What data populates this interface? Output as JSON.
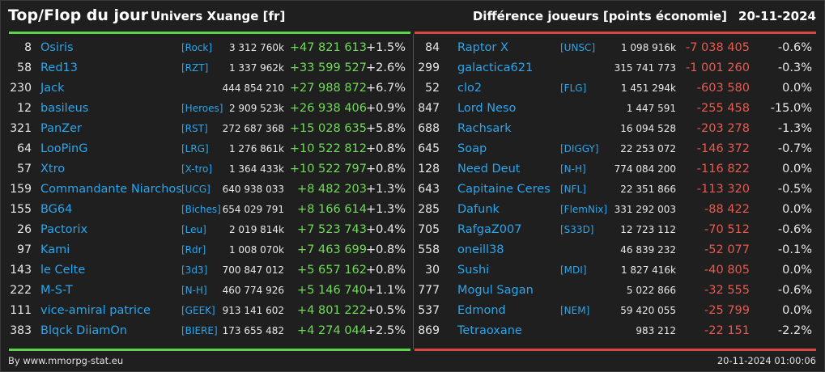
{
  "header": {
    "title": "Top/Flop du jour",
    "universe": "Univers Xuange [fr]",
    "metric": "Différence joueurs [points économie]",
    "date": "20-11-2024"
  },
  "colors": {
    "background": "#1f1f1f",
    "name": "#29a6ee",
    "positive": "#6fdc55",
    "negative": "#e85a4f",
    "top_bar": "#5fd34d",
    "flop_bar": "#d8473f"
  },
  "top": [
    {
      "rank": "8",
      "name": "Osiris",
      "alliance": "[Rock]",
      "points": "3 312 760k",
      "diff": "+47 821 613",
      "pct": "+1.5%"
    },
    {
      "rank": "58",
      "name": "Red13",
      "alliance": "[RZT]",
      "points": "1 337 962k",
      "diff": "+33 599 527",
      "pct": "+2.6%"
    },
    {
      "rank": "230",
      "name": "Jack",
      "alliance": "",
      "points": "444 854 210",
      "diff": "+27 988 872",
      "pct": "+6.7%"
    },
    {
      "rank": "12",
      "name": "basileus",
      "alliance": "[Heroes]",
      "points": "2 909 523k",
      "diff": "+26 938 406",
      "pct": "+0.9%"
    },
    {
      "rank": "321",
      "name": "PanZer",
      "alliance": "[RST]",
      "points": "272 687 368",
      "diff": "+15 028 635",
      "pct": "+5.8%"
    },
    {
      "rank": "64",
      "name": "LooPinG",
      "alliance": "[LRG]",
      "points": "1 276 861k",
      "diff": "+10 522 812",
      "pct": "+0.8%"
    },
    {
      "rank": "57",
      "name": "Xtro",
      "alliance": "[X-tro]",
      "points": "1 364 433k",
      "diff": "+10 522 797",
      "pct": "+0.8%"
    },
    {
      "rank": "159",
      "name": "Commandante Niarchos",
      "alliance": "[UCG]",
      "points": "640 938 033",
      "diff": "+8 482 203",
      "pct": "+1.3%"
    },
    {
      "rank": "155",
      "name": "BG64",
      "alliance": "[Biches]",
      "points": "654 029 791",
      "diff": "+8 166 614",
      "pct": "+1.3%"
    },
    {
      "rank": "26",
      "name": "Pactorix",
      "alliance": "[Leu]",
      "points": "2 019 814k",
      "diff": "+7 523 743",
      "pct": "+0.4%"
    },
    {
      "rank": "97",
      "name": "Kami",
      "alliance": "[Rdr]",
      "points": "1 008 070k",
      "diff": "+7 463 699",
      "pct": "+0.8%"
    },
    {
      "rank": "143",
      "name": "le Celte",
      "alliance": "[3d3]",
      "points": "700 847 012",
      "diff": "+5 657 162",
      "pct": "+0.8%"
    },
    {
      "rank": "222",
      "name": "M-S-T",
      "alliance": "[N-H]",
      "points": "460 774 926",
      "diff": "+5 146 740",
      "pct": "+1.1%"
    },
    {
      "rank": "111",
      "name": "vice-amiral patrice",
      "alliance": "[GEEK]",
      "points": "913 141 602",
      "diff": "+4 801 222",
      "pct": "+0.5%"
    },
    {
      "rank": "383",
      "name": "Blqck DiiamOn",
      "alliance": "[BIERE]",
      "points": "173 655 482",
      "diff": "+4 274 044",
      "pct": "+2.5%"
    }
  ],
  "flop": [
    {
      "rank": "84",
      "name": "Raptor X",
      "alliance": "[UNSC]",
      "points": "1 098 916k",
      "diff": "-7 038 405",
      "pct": "-0.6%"
    },
    {
      "rank": "299",
      "name": "galactica621",
      "alliance": "",
      "points": "315 741 773",
      "diff": "-1 001 260",
      "pct": "-0.3%"
    },
    {
      "rank": "52",
      "name": "clo2",
      "alliance": "[FLG]",
      "points": "1 451 294k",
      "diff": "-603 580",
      "pct": "0.0%"
    },
    {
      "rank": "847",
      "name": "Lord Neso",
      "alliance": "",
      "points": "1 447 591",
      "diff": "-255 458",
      "pct": "-15.0%"
    },
    {
      "rank": "688",
      "name": "Rachsark",
      "alliance": "",
      "points": "16 094 528",
      "diff": "-203 278",
      "pct": "-1.3%"
    },
    {
      "rank": "645",
      "name": "Soap",
      "alliance": "[DIGGY]",
      "points": "22 253 072",
      "diff": "-146 372",
      "pct": "-0.7%"
    },
    {
      "rank": "128",
      "name": "Need Deut",
      "alliance": "[N-H]",
      "points": "774 084 200",
      "diff": "-116 822",
      "pct": "0.0%"
    },
    {
      "rank": "643",
      "name": "Capitaine Ceres",
      "alliance": "[NFL]",
      "points": "22 351 866",
      "diff": "-113 320",
      "pct": "-0.5%"
    },
    {
      "rank": "285",
      "name": "Dafunk",
      "alliance": "[FlemNix]",
      "points": "331 292 003",
      "diff": "-88 422",
      "pct": "0.0%"
    },
    {
      "rank": "705",
      "name": "RafgaZ007",
      "alliance": "[S33D]",
      "points": "12 723 112",
      "diff": "-70 512",
      "pct": "-0.6%"
    },
    {
      "rank": "558",
      "name": "oneill38",
      "alliance": "",
      "points": "46 839 232",
      "diff": "-52 077",
      "pct": "-0.1%"
    },
    {
      "rank": "30",
      "name": "Sushi",
      "alliance": "[MDI]",
      "points": "1 827 416k",
      "diff": "-40 805",
      "pct": "0.0%"
    },
    {
      "rank": "777",
      "name": "Mogul Sagan",
      "alliance": "",
      "points": "5 022 866",
      "diff": "-32 555",
      "pct": "-0.6%"
    },
    {
      "rank": "537",
      "name": "Edmond",
      "alliance": "[NEM]",
      "points": "59 420 055",
      "diff": "-25 799",
      "pct": "0.0%"
    },
    {
      "rank": "869",
      "name": "Tetraoxane",
      "alliance": "",
      "points": "983 212",
      "diff": "-22 151",
      "pct": "-2.2%"
    }
  ],
  "footer": {
    "source": "By www.mmorpg-stat.eu",
    "timestamp": "20-11-2024 01:00:06"
  }
}
